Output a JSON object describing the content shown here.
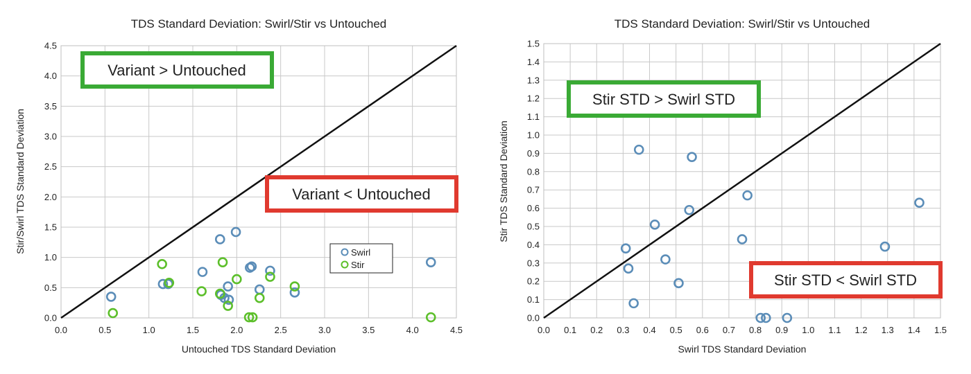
{
  "chart_data": [
    {
      "type": "scatter",
      "title": "TDS Standard Deviation: Swirl/Stir vs Untouched",
      "xlabel": "Untouched TDS Standard Deviation",
      "ylabel": "Stir/Swirl TDS Standard Deviation",
      "xlim": [
        0,
        4.5
      ],
      "ylim": [
        0,
        4.5
      ],
      "xticks": [
        "0.0",
        "0.5",
        "1.0",
        "1.5",
        "2.0",
        "2.5",
        "3.0",
        "3.5",
        "4.0",
        "4.5"
      ],
      "yticks": [
        "0.0",
        "0.5",
        "1.0",
        "1.5",
        "2.0",
        "2.5",
        "3.0",
        "3.5",
        "4.0",
        "4.5"
      ],
      "grid": true,
      "reference_line": {
        "from": [
          0,
          0
        ],
        "to": [
          4.5,
          4.5
        ],
        "color": "#111111"
      },
      "legend": {
        "placement": "lower-right",
        "entries": [
          {
            "name": "Swirl",
            "color": "#5b8db8"
          },
          {
            "name": "Stir",
            "color": "#5cbf2a"
          }
        ]
      },
      "annotations": [
        {
          "text": "Variant > Untouched",
          "border_color": "#3aaa35",
          "position": "upper-left"
        },
        {
          "text": "Variant < Untouched",
          "border_color": "#e03a2f",
          "position": "middle-right"
        }
      ],
      "series": [
        {
          "name": "Swirl",
          "color": "#5b8db8",
          "points": [
            [
              0.57,
              0.35
            ],
            [
              1.16,
              0.56
            ],
            [
              1.22,
              0.56
            ],
            [
              1.61,
              0.76
            ],
            [
              1.81,
              1.3
            ],
            [
              1.99,
              1.42
            ],
            [
              1.82,
              0.38
            ],
            [
              1.86,
              0.33
            ],
            [
              1.9,
              0.52
            ],
            [
              1.91,
              0.3
            ],
            [
              2.15,
              0.83
            ],
            [
              2.17,
              0.85
            ],
            [
              2.26,
              0.47
            ],
            [
              2.38,
              0.78
            ],
            [
              2.66,
              0.42
            ],
            [
              4.21,
              0.92
            ]
          ]
        },
        {
          "name": "Stir",
          "color": "#5cbf2a",
          "points": [
            [
              0.59,
              0.08
            ],
            [
              1.15,
              0.89
            ],
            [
              1.23,
              0.58
            ],
            [
              1.6,
              0.44
            ],
            [
              1.84,
              0.92
            ],
            [
              1.81,
              0.4
            ],
            [
              1.9,
              0.2
            ],
            [
              2.0,
              0.64
            ],
            [
              2.14,
              0.01
            ],
            [
              2.18,
              0.01
            ],
            [
              2.26,
              0.33
            ],
            [
              2.38,
              0.68
            ],
            [
              2.66,
              0.52
            ],
            [
              4.21,
              0.01
            ]
          ]
        }
      ]
    },
    {
      "type": "scatter",
      "title": "TDS Standard Deviation: Swirl/Stir vs Untouched",
      "xlabel": "Swirl TDS Standard Deviation",
      "ylabel": "Stir TDS Standard Deviation",
      "xlim": [
        0,
        1.5
      ],
      "ylim": [
        0,
        1.5
      ],
      "xticks": [
        "0.0",
        "0.1",
        "0.2",
        "0.3",
        "0.4",
        "0.5",
        "0.6",
        "0.7",
        "0.8",
        "0.9",
        "1.0",
        "1.1",
        "1.2",
        "1.3",
        "1.4",
        "1.5"
      ],
      "yticks": [
        "0.0",
        "0.1",
        "0.2",
        "0.3",
        "0.4",
        "0.5",
        "0.6",
        "0.7",
        "0.8",
        "0.9",
        "1.0",
        "1.1",
        "1.2",
        "1.3",
        "1.4",
        "1.5"
      ],
      "grid": true,
      "reference_line": {
        "from": [
          0,
          0
        ],
        "to": [
          1.5,
          1.5
        ],
        "color": "#111111"
      },
      "annotations": [
        {
          "text": "Stir STD > Swirl STD",
          "border_color": "#3aaa35",
          "position": "upper-left"
        },
        {
          "text": "Stir STD < Swirl STD",
          "border_color": "#e03a2f",
          "position": "lower-right"
        }
      ],
      "series": [
        {
          "color": "#5b8db8",
          "points": [
            [
              0.36,
              0.92
            ],
            [
              0.56,
              0.88
            ],
            [
              0.31,
              0.38
            ],
            [
              0.32,
              0.27
            ],
            [
              0.34,
              0.08
            ],
            [
              0.42,
              0.51
            ],
            [
              0.46,
              0.32
            ],
            [
              0.51,
              0.19
            ],
            [
              0.55,
              0.59
            ],
            [
              0.75,
              0.43
            ],
            [
              0.77,
              0.67
            ],
            [
              0.82,
              0.0
            ],
            [
              0.84,
              0.0
            ],
            [
              0.92,
              0.0
            ],
            [
              1.29,
              0.39
            ],
            [
              1.42,
              0.63
            ]
          ]
        }
      ]
    }
  ]
}
